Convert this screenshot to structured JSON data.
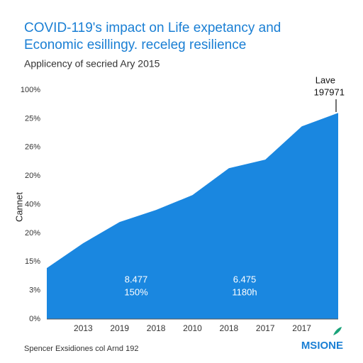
{
  "chart_data": {
    "type": "area",
    "title": [
      "COVID-119's impact on Life expetancy and",
      "Economic esillingy. receleg resilience"
    ],
    "subtitle": "Applicency of secried Ary 2015",
    "y_label": "Cannet",
    "categories": [
      null,
      "2013",
      "2019",
      "2018",
      "2010",
      "2018",
      "2017",
      "2017",
      null
    ],
    "values": [
      1.78,
      2.65,
      3.39,
      3.81,
      4.33,
      5.27,
      5.57,
      6.73,
      7.2
    ],
    "color": "#1a87e0",
    "ylim": [
      0,
      8
    ],
    "yticks": [
      {
        "value": 0,
        "label": "0%"
      },
      {
        "value": 1,
        "label": "3%"
      },
      {
        "value": 2,
        "label": "15%"
      },
      {
        "value": 3,
        "label": "20%"
      },
      {
        "value": 4,
        "label": "40%"
      },
      {
        "value": 5,
        "label": "20%"
      },
      {
        "value": 6,
        "label": "26%"
      },
      {
        "value": 7,
        "label": "25%"
      },
      {
        "value": 8,
        "label": "100%"
      }
    ],
    "end_annotation": [
      "Lave",
      "197971"
    ],
    "inner_labels": [
      [
        "8.477",
        "150%"
      ],
      [
        "6.475",
        "1180h"
      ]
    ],
    "footer": "Spencer Exsidiones col Arnd 192",
    "logo": "MSIONE"
  }
}
